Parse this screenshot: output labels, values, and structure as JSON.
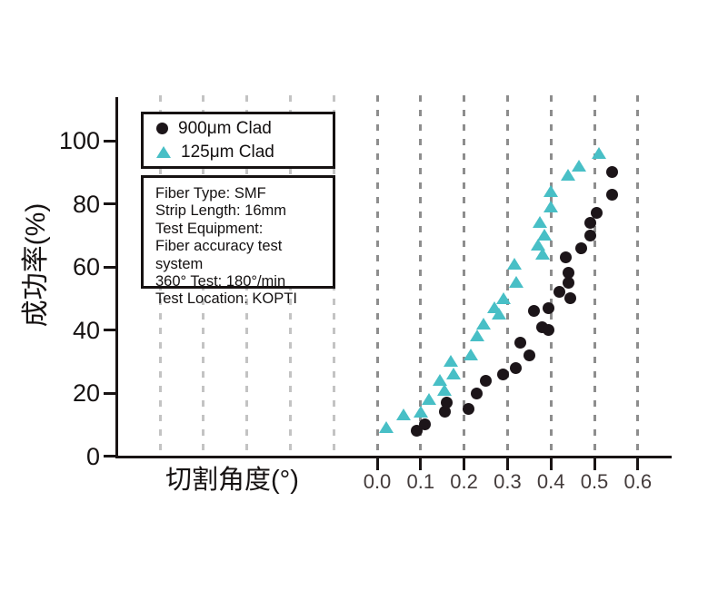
{
  "chart_data": {
    "type": "scatter",
    "title": "",
    "xlabel": "切割角度(°)",
    "ylabel": "成功率(%)",
    "x_tick_values": [
      0.0,
      0.1,
      0.2,
      0.3,
      0.4,
      0.5,
      0.6
    ],
    "x_tick_labels": [
      "0.0",
      "0.1",
      "0.2",
      "0.3",
      "0.4",
      "0.5",
      "0.6"
    ],
    "y_tick_values": [
      0,
      20,
      40,
      60,
      80,
      100
    ],
    "y_tick_labels": [
      "0",
      "20",
      "40",
      "60",
      "80",
      "100"
    ],
    "xlim": [
      -0.6,
      0.68
    ],
    "ylim": [
      0,
      114
    ],
    "grid": {
      "orientation": "vertical",
      "style": "dashed",
      "from": -0.5,
      "to": 0.6,
      "step": 0.1
    },
    "legend_position": "top-left",
    "series": [
      {
        "name": "900μm Clad",
        "marker": "circle",
        "color": "#1c1519",
        "points": [
          [
            0.09,
            8
          ],
          [
            0.11,
            10
          ],
          [
            0.155,
            14
          ],
          [
            0.16,
            17
          ],
          [
            0.21,
            15
          ],
          [
            0.23,
            20
          ],
          [
            0.25,
            24
          ],
          [
            0.29,
            26
          ],
          [
            0.32,
            28
          ],
          [
            0.33,
            36
          ],
          [
            0.35,
            32
          ],
          [
            0.36,
            46
          ],
          [
            0.38,
            41
          ],
          [
            0.395,
            40
          ],
          [
            0.395,
            47
          ],
          [
            0.42,
            52
          ],
          [
            0.435,
            63
          ],
          [
            0.44,
            55
          ],
          [
            0.44,
            58
          ],
          [
            0.445,
            50
          ],
          [
            0.47,
            66
          ],
          [
            0.49,
            70
          ],
          [
            0.49,
            74
          ],
          [
            0.505,
            77
          ],
          [
            0.54,
            83
          ],
          [
            0.54,
            90
          ]
        ]
      },
      {
        "name": "125μm Clad",
        "marker": "triangle",
        "color": "#48bfc6",
        "points": [
          [
            0.02,
            9
          ],
          [
            0.06,
            13
          ],
          [
            0.1,
            14
          ],
          [
            0.12,
            18
          ],
          [
            0.145,
            24
          ],
          [
            0.155,
            21
          ],
          [
            0.17,
            30
          ],
          [
            0.175,
            26
          ],
          [
            0.215,
            32
          ],
          [
            0.23,
            38
          ],
          [
            0.245,
            42
          ],
          [
            0.27,
            47
          ],
          [
            0.28,
            45
          ],
          [
            0.29,
            50
          ],
          [
            0.315,
            61
          ],
          [
            0.32,
            55
          ],
          [
            0.37,
            67
          ],
          [
            0.375,
            74
          ],
          [
            0.38,
            64
          ],
          [
            0.385,
            70
          ],
          [
            0.4,
            79
          ],
          [
            0.4,
            84
          ],
          [
            0.44,
            89
          ],
          [
            0.465,
            92
          ],
          [
            0.51,
            96
          ]
        ]
      }
    ]
  },
  "info_box": {
    "lines": [
      "Fiber Type: SMF",
      "Strip Length: 16mm",
      "Test Equipment:",
      "Fiber accuracy test system",
      "360° Test: 180°/min",
      "Test Location: KOPTI"
    ]
  },
  "colors": {
    "axis": "#191414",
    "background": "#ffffff",
    "gridline_dark": "#8d8d8d",
    "gridline_light": "#c3c3c3",
    "x_tick_label": "#433b3b",
    "series_900um": "#1c1519",
    "series_125um": "#48bfc6"
  }
}
